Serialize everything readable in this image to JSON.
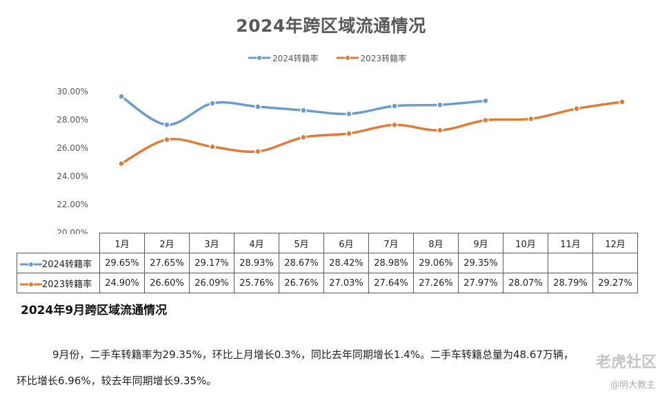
{
  "chart_data": {
    "type": "line",
    "title": "2024年跨区域流通情况",
    "categories": [
      "1月",
      "2月",
      "3月",
      "4月",
      "5月",
      "6月",
      "7月",
      "8月",
      "9月",
      "10月",
      "11月",
      "12月"
    ],
    "ylim": [
      20,
      30
    ],
    "yticks": [
      "30.00%",
      "28.00%",
      "26.00%",
      "24.00%",
      "22.00%",
      "20.00%"
    ],
    "ytick_values": [
      30,
      28,
      26,
      24,
      22,
      20
    ],
    "series": [
      {
        "name": "2024转籍率",
        "color": "#6b9bd1",
        "values": [
          29.65,
          27.65,
          29.17,
          28.93,
          28.67,
          28.42,
          28.98,
          29.06,
          29.35,
          null,
          null,
          null
        ],
        "labels": [
          "29.65%",
          "27.65%",
          "29.17%",
          "28.93%",
          "28.67%",
          "28.42%",
          "28.98%",
          "29.06%",
          "29.35%",
          "",
          "",
          ""
        ]
      },
      {
        "name": "2023转籍率",
        "color": "#e07b39",
        "values": [
          24.9,
          26.6,
          26.09,
          25.76,
          26.76,
          27.03,
          27.64,
          27.26,
          27.97,
          28.07,
          28.79,
          29.27
        ],
        "labels": [
          "24.90%",
          "26.60%",
          "26.09%",
          "25.76%",
          "26.76%",
          "27.03%",
          "27.64%",
          "27.26%",
          "27.97%",
          "28.07%",
          "28.79%",
          "29.27%"
        ]
      }
    ],
    "legend_position": "top-center",
    "grid": false
  },
  "article": {
    "heading": "2024年9月跨区域流通情况",
    "line1": "9月份，二手车转籍率为29.35%，环比上月增长0.3%，同比去年同期增长1.4%。二手车转籍总量为48.67万辆，",
    "line2": "环比增长6.96%，较去年同期增长9.35%。"
  },
  "watermark": {
    "brand": "老虎社区",
    "author": "@明大教主"
  }
}
